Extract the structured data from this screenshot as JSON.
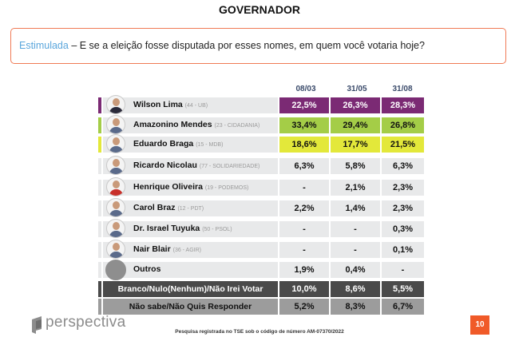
{
  "title": "GOVERNADOR",
  "question": {
    "prefix": "Estimulada",
    "text": " – E se a eleição fosse disputada por esses nomes, em quem você votaria hoje?"
  },
  "columns": [
    "08/03",
    "31/05",
    "31/08"
  ],
  "colors": {
    "question_border": "#f07a55",
    "accent_text": "#5aa6dc",
    "page_badge": "#f05a28"
  },
  "candidates": [
    {
      "name": "Wilson Lima",
      "party": "(44 - UB)",
      "values": [
        "22,5%",
        "26,3%",
        "28,3%"
      ],
      "color": "#7b2a74",
      "text_color": "#ffffff",
      "avatar": "photo"
    },
    {
      "name": "Amazonino Mendes",
      "party": "(23 - CIDADANIA)",
      "values": [
        "33,4%",
        "29,4%",
        "26,8%"
      ],
      "color": "#a4cd47",
      "text_color": "#111111",
      "avatar": "photo"
    },
    {
      "name": "Eduardo Braga",
      "party": "(15 - MDB)",
      "values": [
        "18,6%",
        "17,7%",
        "21,5%"
      ],
      "color": "#e3e83a",
      "text_color": "#111111",
      "avatar": "photo"
    },
    {
      "name": "Ricardo Nicolau",
      "party": "(77 - SOLIDARIEDADE)",
      "values": [
        "6,3%",
        "5,8%",
        "6,3%"
      ],
      "color": "#e8e9ea",
      "text_color": "#111111",
      "avatar": "photo"
    },
    {
      "name": "Henrique Oliveira",
      "party": "(19 - PODEMOS)",
      "values": [
        "-",
        "2,1%",
        "2,3%"
      ],
      "color": "#e8e9ea",
      "text_color": "#111111",
      "avatar": "photo"
    },
    {
      "name": "Carol Braz",
      "party": "(12 - PDT)",
      "values": [
        "2,2%",
        "1,4%",
        "2,3%"
      ],
      "color": "#e8e9ea",
      "text_color": "#111111",
      "avatar": "photo"
    },
    {
      "name": "Dr. Israel Tuyuka",
      "party": "(50 - PSOL)",
      "values": [
        "-",
        "-",
        "0,3%"
      ],
      "color": "#e8e9ea",
      "text_color": "#111111",
      "avatar": "photo"
    },
    {
      "name": "Nair Blair",
      "party": "(36 - AGIR)",
      "values": [
        "-",
        "-",
        "0,1%"
      ],
      "color": "#e8e9ea",
      "text_color": "#111111",
      "avatar": "photo"
    },
    {
      "name": "Outros",
      "party": "",
      "values": [
        "1,9%",
        "0,4%",
        "-"
      ],
      "color": "#e8e9ea",
      "text_color": "#111111",
      "avatar": "gray-circle"
    }
  ],
  "summary": [
    {
      "label": "Branco/Nulo(Nenhum)/Não Irei Votar",
      "values": [
        "10,0%",
        "8,6%",
        "5,5%"
      ],
      "color": "#4a4a4a",
      "text_color": "#ffffff"
    },
    {
      "label": "Não sabe/Não Quis Responder",
      "values": [
        "5,2%",
        "8,3%",
        "6,7%"
      ],
      "color": "#9c9c9c",
      "text_color": "#111111"
    }
  ],
  "footer": {
    "logo": "perspectiva",
    "note": "Pesquisa registrada no TSE sob o código de número AM-07370/2022",
    "page": "10"
  }
}
